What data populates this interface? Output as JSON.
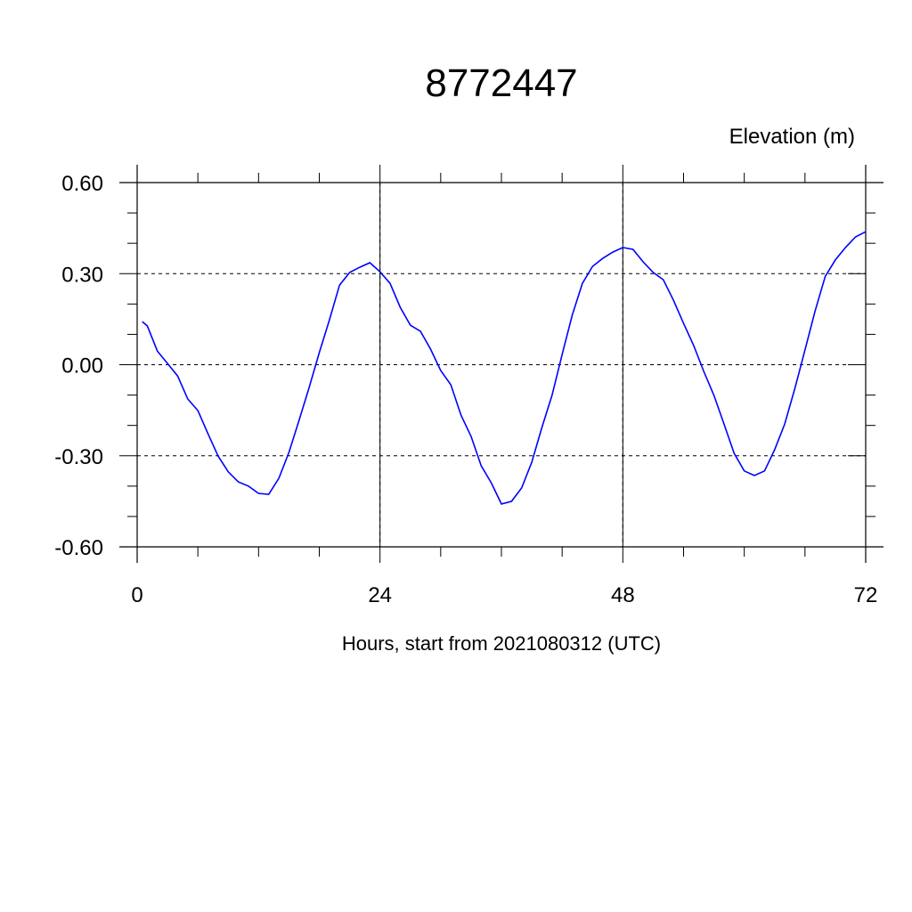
{
  "chart_data": {
    "type": "line",
    "title": "8772447",
    "ylabel": "Elevation (m)",
    "xlabel": "Hours, start from 2021080312 (UTC)",
    "xlim": [
      0,
      72
    ],
    "ylim": [
      -0.6,
      0.6
    ],
    "x_ticks": [
      0,
      24,
      48,
      72
    ],
    "x_tick_labels": [
      "0",
      "24",
      "48",
      "72"
    ],
    "y_ticks": [
      0.6,
      0.3,
      0.0,
      -0.3,
      -0.6
    ],
    "y_tick_labels": [
      "0.60",
      "0.30",
      "0.00",
      "-0.30",
      "-0.60"
    ],
    "grid": true,
    "line_color": "#0000ff",
    "series": [
      {
        "x": [
          0.5,
          1,
          2,
          3,
          4,
          5,
          6,
          7,
          8,
          9,
          10,
          11,
          12,
          13,
          14,
          15,
          16,
          17,
          18,
          19,
          20,
          21,
          22,
          23,
          24,
          25,
          26,
          27,
          28,
          29,
          30,
          31,
          32,
          33,
          34,
          35,
          36,
          37,
          38,
          39,
          40,
          41,
          42,
          43,
          44,
          45,
          46,
          47,
          48,
          49,
          50,
          51,
          52,
          53,
          54,
          55,
          56,
          57,
          58,
          59,
          60,
          61,
          62,
          63,
          64,
          65,
          66,
          67,
          68,
          69,
          70,
          71,
          72
        ],
        "y": [
          0.142,
          0.128,
          0.045,
          0.004,
          -0.037,
          -0.113,
          -0.151,
          -0.227,
          -0.301,
          -0.353,
          -0.386,
          -0.4,
          -0.424,
          -0.427,
          -0.374,
          -0.289,
          -0.183,
          -0.075,
          0.04,
          0.148,
          0.262,
          0.304,
          0.321,
          0.336,
          0.306,
          0.268,
          0.189,
          0.13,
          0.11,
          0.051,
          -0.019,
          -0.066,
          -0.166,
          -0.236,
          -0.333,
          -0.389,
          -0.459,
          -0.45,
          -0.406,
          -0.321,
          -0.207,
          -0.101,
          0.034,
          0.163,
          0.268,
          0.324,
          0.35,
          0.371,
          0.386,
          0.38,
          0.339,
          0.304,
          0.28,
          0.213,
          0.136,
          0.063,
          -0.022,
          -0.101,
          -0.195,
          -0.292,
          -0.35,
          -0.365,
          -0.35,
          -0.28,
          -0.195,
          -0.078,
          0.048,
          0.177,
          0.291,
          0.345,
          0.386,
          0.421,
          0.438
        ]
      }
    ]
  }
}
